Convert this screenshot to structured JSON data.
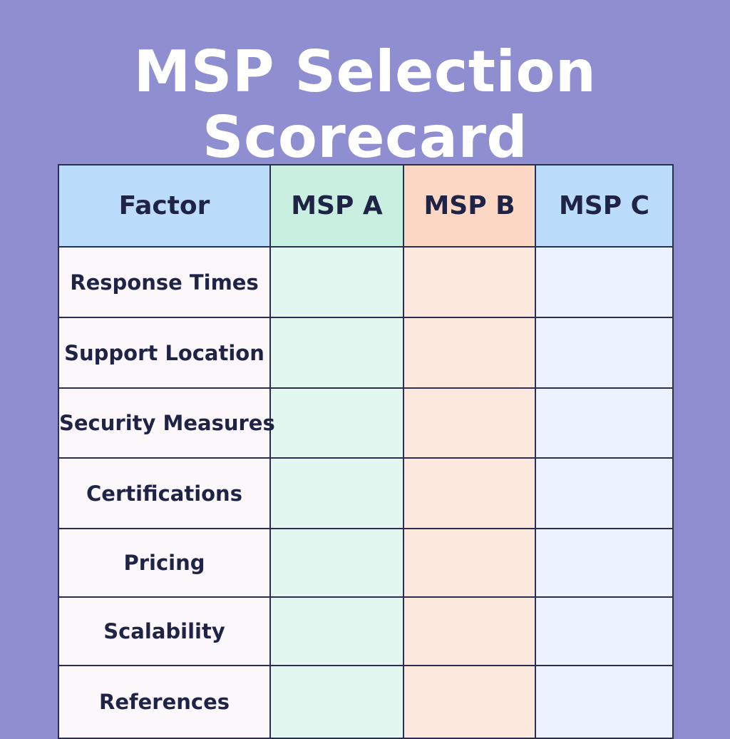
{
  "title": {
    "line1": "MSP Selection",
    "line2": "Scorecard"
  },
  "table": {
    "headers": [
      "Factor",
      "MSP A",
      "MSP B",
      "MSP C"
    ],
    "rows": [
      {
        "factor": "Response Times",
        "msp_a": "",
        "msp_b": "",
        "msp_c": ""
      },
      {
        "factor": "Support Location",
        "msp_a": "",
        "msp_b": "",
        "msp_c": ""
      },
      {
        "factor": "Security Measures",
        "msp_a": "",
        "msp_b": "",
        "msp_c": ""
      },
      {
        "factor": "Certifications",
        "msp_a": "",
        "msp_b": "",
        "msp_c": ""
      },
      {
        "factor": "Pricing",
        "msp_a": "",
        "msp_b": "",
        "msp_c": ""
      },
      {
        "factor": "Scalability",
        "msp_a": "",
        "msp_b": "",
        "msp_c": ""
      },
      {
        "factor": "References",
        "msp_a": "",
        "msp_b": "",
        "msp_c": ""
      }
    ]
  },
  "colors": {
    "background": "#8f8ed0",
    "title_text": "#ffffff",
    "text": "#1f2447",
    "grid": "#2b2e52",
    "factor_header": "#bcdcfb",
    "msp_a_header": "#c9efe0",
    "msp_b_header": "#fcd8c4",
    "msp_c_header": "#bcdcfb",
    "factor_cell": "#fbf7fb",
    "msp_a_cell": "#e1f7ef",
    "msp_b_cell": "#fde8de",
    "msp_c_cell": "#eaf3fe"
  }
}
